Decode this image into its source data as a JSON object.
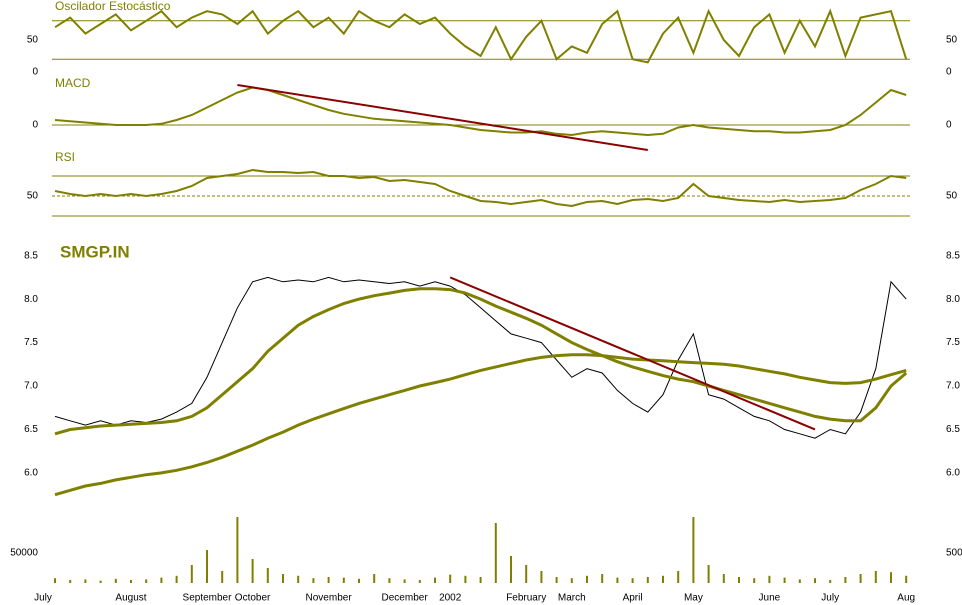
{
  "chart_data": [
    {
      "type": "line",
      "title": "Oscilador Estocástico",
      "ylim": [
        0,
        100
      ],
      "yticks": [
        0,
        50
      ],
      "bands": [
        20,
        80
      ],
      "grid": false,
      "series": [
        {
          "color": "#808000",
          "values": [
            70,
            85,
            60,
            75,
            90,
            65,
            80,
            95,
            70,
            85,
            95,
            90,
            75,
            95,
            60,
            80,
            95,
            70,
            85,
            60,
            95,
            80,
            70,
            90,
            75,
            85,
            60,
            40,
            25,
            70,
            20,
            55,
            80,
            20,
            40,
            30,
            75,
            95,
            20,
            15,
            60,
            85,
            30,
            95,
            50,
            25,
            70,
            90,
            30,
            80,
            40,
            95,
            25,
            85,
            90,
            95,
            20
          ]
        }
      ]
    },
    {
      "type": "line",
      "title": "MACD",
      "ylim": [
        -0.1,
        0.2
      ],
      "yticks": [
        0
      ],
      "grid": true,
      "series": [
        {
          "color": "#808000",
          "values": [
            0.02,
            0.015,
            0.01,
            0.005,
            0,
            0,
            0,
            0.005,
            0.02,
            0.04,
            0.07,
            0.1,
            0.13,
            0.15,
            0.14,
            0.12,
            0.1,
            0.08,
            0.06,
            0.045,
            0.035,
            0.025,
            0.02,
            0.015,
            0.01,
            0.005,
            0,
            -0.01,
            -0.02,
            -0.025,
            -0.03,
            -0.03,
            -0.025,
            -0.035,
            -0.04,
            -0.03,
            -0.025,
            -0.03,
            -0.035,
            -0.04,
            -0.035,
            -0.01,
            0,
            -0.01,
            -0.015,
            -0.02,
            -0.025,
            -0.025,
            -0.03,
            -0.03,
            -0.025,
            -0.02,
            0,
            0.04,
            0.09,
            0.14,
            0.12
          ]
        }
      ],
      "trendline": {
        "color": "#8b0000",
        "x": [
          12,
          39
        ],
        "values": [
          0.16,
          -0.1
        ]
      }
    },
    {
      "type": "line",
      "title": "RSI",
      "ylim": [
        20,
        80
      ],
      "yticks": [
        50
      ],
      "bands": [
        30,
        70
      ],
      "grid": true,
      "series": [
        {
          "color": "#808000",
          "values": [
            55,
            52,
            50,
            52,
            50,
            52,
            50,
            52,
            55,
            60,
            68,
            70,
            72,
            76,
            74,
            74,
            73,
            74,
            70,
            70,
            68,
            69,
            65,
            66,
            64,
            62,
            55,
            50,
            45,
            44,
            42,
            44,
            46,
            42,
            40,
            44,
            45,
            42,
            46,
            47,
            45,
            48,
            62,
            50,
            48,
            46,
            45,
            44,
            46,
            44,
            45,
            46,
            48,
            56,
            62,
            70,
            68
          ]
        }
      ]
    },
    {
      "type": "line",
      "title": "SMGP.IN",
      "ylim": [
        5.7,
        8.6
      ],
      "yticks": [
        {
          "value": 6,
          "label": "6.0"
        },
        6.5,
        {
          "value": 7,
          "label": "7.0"
        },
        7.5,
        {
          "value": 8,
          "label": "8.0"
        },
        8.5
      ],
      "grid": false,
      "series": [
        {
          "color": "#000000",
          "values": [
            6.65,
            6.6,
            6.55,
            6.6,
            6.55,
            6.6,
            6.58,
            6.62,
            6.7,
            6.8,
            7.1,
            7.5,
            7.9,
            8.2,
            8.25,
            8.2,
            8.22,
            8.2,
            8.25,
            8.2,
            8.22,
            8.2,
            8.18,
            8.2,
            8.15,
            8.2,
            8.15,
            8.05,
            7.9,
            7.75,
            7.6,
            7.55,
            7.5,
            7.3,
            7.1,
            7.2,
            7.15,
            6.95,
            6.8,
            6.7,
            6.9,
            7.3,
            7.6,
            6.9,
            6.85,
            6.75,
            6.65,
            6.6,
            6.5,
            6.45,
            6.4,
            6.5,
            6.45,
            6.7,
            7.2,
            8.2,
            8.0
          ]
        },
        {
          "color": "#808000",
          "values": [
            6.45,
            6.5,
            6.52,
            6.54,
            6.55,
            6.56,
            6.57,
            6.58,
            6.6,
            6.65,
            6.75,
            6.9,
            7.05,
            7.2,
            7.4,
            7.55,
            7.7,
            7.8,
            7.88,
            7.95,
            8.0,
            8.04,
            8.07,
            8.1,
            8.12,
            8.12,
            8.11,
            8.07,
            8.0,
            7.92,
            7.85,
            7.78,
            7.7,
            7.6,
            7.5,
            7.42,
            7.35,
            7.28,
            7.22,
            7.17,
            7.12,
            7.08,
            7.05,
            7.0,
            6.95,
            6.9,
            6.85,
            6.8,
            6.75,
            6.7,
            6.65,
            6.62,
            6.6,
            6.6,
            6.75,
            7.0,
            7.15
          ]
        },
        {
          "color": "#808000",
          "values": [
            5.75,
            5.8,
            5.85,
            5.88,
            5.92,
            5.95,
            5.98,
            6.0,
            6.03,
            6.07,
            6.12,
            6.18,
            6.25,
            6.32,
            6.4,
            6.47,
            6.55,
            6.62,
            6.68,
            6.74,
            6.8,
            6.85,
            6.9,
            6.95,
            7.0,
            7.04,
            7.08,
            7.13,
            7.18,
            7.22,
            7.26,
            7.3,
            7.33,
            7.35,
            7.36,
            7.36,
            7.35,
            7.33,
            7.31,
            7.3,
            7.29,
            7.28,
            7.27,
            7.26,
            7.25,
            7.23,
            7.2,
            7.17,
            7.14,
            7.1,
            7.07,
            7.04,
            7.03,
            7.04,
            7.08,
            7.13,
            7.18
          ]
        }
      ],
      "trendline": {
        "color": "#8b0000",
        "x": [
          26,
          50
        ],
        "values": [
          8.25,
          6.5
        ]
      }
    },
    {
      "type": "bar",
      "ylim": [
        0,
        120000
      ],
      "yticks": [
        50000
      ],
      "grid": false,
      "color": "#808000",
      "categories": [
        "July",
        null,
        null,
        null,
        null,
        "August",
        null,
        null,
        null,
        null,
        "September",
        null,
        null,
        "October",
        null,
        null,
        null,
        null,
        "November",
        null,
        null,
        null,
        null,
        "December",
        null,
        null,
        "2002",
        null,
        null,
        null,
        null,
        "February",
        null,
        null,
        "March",
        null,
        null,
        null,
        "April",
        null,
        null,
        null,
        "May",
        null,
        null,
        null,
        null,
        "June",
        null,
        null,
        null,
        "July",
        null,
        null,
        null,
        null,
        "Aug"
      ],
      "values": [
        8000,
        5000,
        6000,
        4000,
        7000,
        5000,
        6000,
        9000,
        12000,
        30000,
        55000,
        20000,
        110000,
        40000,
        25000,
        15000,
        12000,
        8000,
        10000,
        9000,
        7000,
        15000,
        8000,
        6000,
        5000,
        9000,
        14000,
        12000,
        10000,
        100000,
        45000,
        30000,
        20000,
        10000,
        8000,
        12000,
        15000,
        9000,
        8000,
        10000,
        12000,
        20000,
        110000,
        30000,
        15000,
        10000,
        8000,
        12000,
        9000,
        6000,
        8000,
        5000,
        10000,
        15000,
        20000,
        18000,
        12000
      ]
    }
  ]
}
